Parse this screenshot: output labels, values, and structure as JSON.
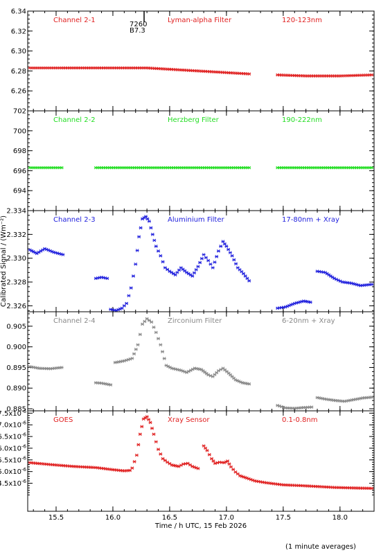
{
  "figure": {
    "xlabel": "Time / h UTC, 15 Feb 2026",
    "ylabel": "Calibrated Signal / (Wm⁻²)",
    "footnote": "(1 minute averages)",
    "annotation_top": "7260",
    "annotation_bottom": "B7.3"
  },
  "chart_data": [
    {
      "type": "scatter",
      "channel": "Channel 2-1",
      "filter": "Lyman-alpha Filter",
      "band": "120-123nm",
      "color": "#e02020",
      "xlim": [
        15.25,
        18.3
      ],
      "ylim": [
        6.24,
        6.34
      ],
      "x_ticks": [
        "15.5",
        "16.0",
        "16.5",
        "17.0",
        "17.5",
        "18.0"
      ],
      "y_ticks": [
        "6.26",
        "6.28",
        "6.30",
        "6.32",
        "6.34"
      ],
      "series": [
        {
          "x": [
            15.27,
            15.55,
            15.85,
            16.0,
            16.3,
            16.6,
            16.9,
            17.2
          ],
          "y": [
            6.283,
            6.283,
            6.283,
            6.283,
            6.283,
            6.281,
            6.279,
            6.277
          ]
        },
        {
          "x": [
            17.45,
            17.7,
            18.0,
            18.28
          ],
          "y": [
            6.276,
            6.275,
            6.275,
            6.276
          ]
        }
      ]
    },
    {
      "type": "scatter",
      "channel": "Channel 2-2",
      "filter": "Herzberg Filter",
      "band": "190-222nm",
      "color": "#22dd22",
      "xlim": [
        15.25,
        18.3
      ],
      "ylim": [
        692,
        702
      ],
      "x_ticks": [
        "15.5",
        "16.0",
        "16.5",
        "17.0",
        "17.5",
        "18.0"
      ],
      "y_ticks": [
        "694",
        "696",
        "698",
        "700",
        "702"
      ],
      "series": [
        {
          "x": [
            15.27,
            15.55
          ],
          "y": [
            696.3,
            696.3
          ]
        },
        {
          "x": [
            15.85,
            17.2
          ],
          "y": [
            696.3,
            696.3
          ]
        },
        {
          "x": [
            17.45,
            18.28
          ],
          "y": [
            696.3,
            696.3
          ]
        }
      ]
    },
    {
      "type": "scatter",
      "channel": "Channel 2-3",
      "filter": "Aluminium Filter",
      "band": "17-80nm + Xray",
      "color": "#2020dd",
      "xlim": [
        15.25,
        18.3
      ],
      "ylim": [
        2.3255,
        2.334
      ],
      "x_ticks": [
        "15.5",
        "16.0",
        "16.5",
        "17.0",
        "17.5",
        "18.0"
      ],
      "y_ticks": [
        "2.326",
        "2.328",
        "2.330",
        "2.332",
        "2.334"
      ],
      "series": [
        {
          "x": [
            15.27,
            15.33,
            15.4,
            15.48,
            15.56
          ],
          "y": [
            2.3307,
            2.3304,
            2.3308,
            2.3305,
            2.3303
          ]
        },
        {
          "x": [
            15.85,
            15.9,
            15.95
          ],
          "y": [
            2.3283,
            2.3284,
            2.3283
          ]
        },
        {
          "x": [
            15.98,
            16.03,
            16.08,
            16.12,
            16.16,
            16.2,
            16.23,
            16.26,
            16.29,
            16.32,
            16.35,
            16.38,
            16.42,
            16.46,
            16.5,
            16.55,
            16.6,
            16.65,
            16.7,
            16.75,
            16.8,
            16.84,
            16.88,
            16.93,
            16.97,
            17.0,
            17.05,
            17.1,
            17.15,
            17.2
          ],
          "y": [
            2.3257,
            2.3256,
            2.3258,
            2.3262,
            2.3275,
            2.3295,
            2.3318,
            2.3333,
            2.3335,
            2.3331,
            2.332,
            2.331,
            2.3302,
            2.3292,
            2.3289,
            2.3286,
            2.3292,
            2.3288,
            2.3285,
            2.3293,
            2.3303,
            2.3298,
            2.3292,
            2.3306,
            2.3314,
            2.331,
            2.3302,
            2.3292,
            2.3287,
            2.3281
          ]
        },
        {
          "x": [
            17.45,
            17.52,
            17.6,
            17.68,
            17.74
          ],
          "y": [
            2.3258,
            2.3259,
            2.3262,
            2.3264,
            2.3263
          ]
        },
        {
          "x": [
            17.8,
            17.87,
            17.95,
            18.02,
            18.1,
            18.18,
            18.28
          ],
          "y": [
            2.3289,
            2.3288,
            2.3283,
            2.328,
            2.3279,
            2.3277,
            2.3278
          ]
        }
      ]
    },
    {
      "type": "scatter",
      "channel": "Channel 2-4",
      "filter": "Zirconium Filter",
      "band": "6-20nm + Xray",
      "color": "#888888",
      "xlim": [
        15.25,
        18.3
      ],
      "ylim": [
        0.8845,
        0.9085
      ],
      "x_ticks": [
        "15.5",
        "16.0",
        "16.5",
        "17.0",
        "17.5",
        "18.0"
      ],
      "y_ticks": [
        "0.885",
        "0.890",
        "0.895",
        "0.900",
        "0.905"
      ],
      "series": [
        {
          "x": [
            15.27,
            15.35,
            15.45,
            15.55
          ],
          "y": [
            0.8952,
            0.8948,
            0.8947,
            0.895
          ]
        },
        {
          "x": [
            15.85,
            15.9,
            15.98
          ],
          "y": [
            0.8913,
            0.8912,
            0.8908
          ]
        },
        {
          "x": [
            16.02,
            16.1,
            16.17,
            16.22,
            16.26,
            16.3,
            16.34,
            16.38,
            16.42,
            16.47,
            16.52,
            16.6,
            16.65,
            16.72,
            16.78,
            16.84,
            16.88,
            16.93,
            16.97,
            17.02,
            17.08,
            17.14,
            17.2
          ],
          "y": [
            0.8962,
            0.8966,
            0.8972,
            0.9005,
            0.9055,
            0.9068,
            0.906,
            0.9035,
            0.9005,
            0.8955,
            0.8948,
            0.8943,
            0.8938,
            0.8948,
            0.8945,
            0.8932,
            0.8928,
            0.8942,
            0.8948,
            0.8936,
            0.892,
            0.8913,
            0.891
          ]
        },
        {
          "x": [
            17.45,
            17.52,
            17.6,
            17.68,
            17.75
          ],
          "y": [
            0.8858,
            0.8852,
            0.8851,
            0.8853,
            0.8854
          ]
        },
        {
          "x": [
            17.8,
            17.88,
            17.96,
            18.04,
            18.12,
            18.2,
            18.28
          ],
          "y": [
            0.8877,
            0.8873,
            0.887,
            0.8868,
            0.8872,
            0.8876,
            0.8878
          ]
        }
      ]
    },
    {
      "type": "scatter",
      "channel": "GOES",
      "filter": "Xray Sensor",
      "band": "0.1-0.8nm",
      "color": "#e02020",
      "xlim": [
        15.25,
        18.3
      ],
      "ylim": [
        3.3,
        7.6
      ],
      "y_exponent": "-6",
      "x_ticks": [
        "15.5",
        "16.0",
        "16.5",
        "17.0",
        "17.5",
        "18.0"
      ],
      "y_ticks": [
        "4.5",
        "5.0",
        "5.5",
        "6.0",
        "6.5",
        "7.0",
        "7.5"
      ],
      "series": [
        {
          "x": [
            15.27,
            15.45,
            15.65,
            15.85,
            16.0,
            16.1,
            16.15
          ],
          "y": [
            5.38,
            5.3,
            5.22,
            5.17,
            5.08,
            5.03,
            5.05
          ]
        },
        {
          "x": [
            16.17,
            16.21,
            16.24,
            16.27,
            16.3,
            16.33,
            16.36,
            16.4,
            16.44,
            16.48,
            16.52,
            16.58,
            16.62,
            16.66,
            16.7,
            16.75
          ],
          "y": [
            5.15,
            5.7,
            6.6,
            7.25,
            7.35,
            7.1,
            6.6,
            5.95,
            5.55,
            5.4,
            5.28,
            5.22,
            5.32,
            5.35,
            5.22,
            5.13
          ]
        },
        {
          "x": [
            16.8,
            16.83,
            16.87,
            16.9,
            16.94,
            16.98,
            17.01,
            17.04,
            17.08,
            17.12,
            17.18,
            17.25,
            17.35,
            17.5,
            17.65,
            17.8,
            17.95,
            18.1,
            18.28
          ],
          "y": [
            6.1,
            5.9,
            5.55,
            5.35,
            5.4,
            5.38,
            5.45,
            5.2,
            4.98,
            4.82,
            4.72,
            4.6,
            4.52,
            4.43,
            4.4,
            4.36,
            4.32,
            4.3,
            4.28
          ]
        }
      ]
    }
  ]
}
